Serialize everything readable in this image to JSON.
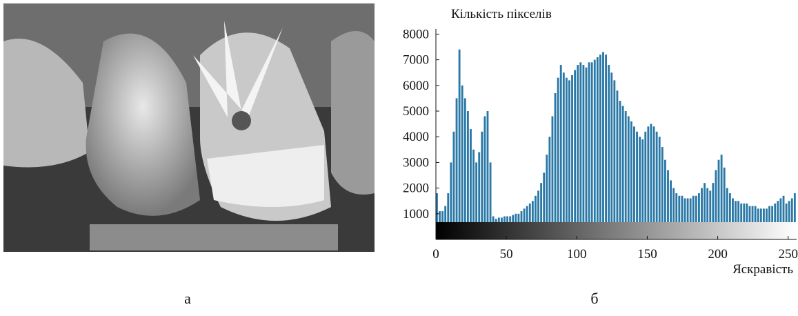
{
  "chart_data": {
    "type": "histogram",
    "ylabel": "Кількість пікселів",
    "xlabel": "Яскравість",
    "color": "#2a78a6",
    "bins": [
      0,
      2,
      4,
      6,
      8,
      10,
      12,
      14,
      16,
      18,
      20,
      22,
      24,
      26,
      28,
      30,
      32,
      34,
      36,
      38,
      40,
      42,
      44,
      46,
      48,
      50,
      52,
      54,
      56,
      58,
      60,
      62,
      64,
      66,
      68,
      70,
      72,
      74,
      76,
      78,
      80,
      82,
      84,
      86,
      88,
      90,
      92,
      94,
      96,
      98,
      100,
      102,
      104,
      106,
      108,
      110,
      112,
      114,
      116,
      118,
      120,
      122,
      124,
      126,
      128,
      130,
      132,
      134,
      136,
      138,
      140,
      142,
      144,
      146,
      148,
      150,
      152,
      154,
      156,
      158,
      160,
      162,
      164,
      166,
      168,
      170,
      172,
      174,
      176,
      178,
      180,
      182,
      184,
      186,
      188,
      190,
      192,
      194,
      196,
      198,
      200,
      202,
      204,
      206,
      208,
      210,
      212,
      214,
      216,
      218,
      220,
      222,
      224,
      226,
      228,
      230,
      232,
      234,
      236,
      238,
      240,
      242,
      244,
      246,
      248,
      250,
      252,
      254,
      256
    ],
    "values": [
      1800,
      1100,
      1100,
      1300,
      1800,
      3000,
      4200,
      5500,
      7400,
      6000,
      5500,
      5000,
      4300,
      3500,
      3000,
      3400,
      4200,
      4800,
      5000,
      3000,
      900,
      800,
      850,
      850,
      900,
      900,
      900,
      950,
      1000,
      1000,
      1100,
      1200,
      1300,
      1400,
      1500,
      1700,
      1900,
      2200,
      2600,
      3300,
      4000,
      4800,
      5700,
      6300,
      6800,
      6500,
      6300,
      6200,
      6400,
      6600,
      6800,
      6900,
      6800,
      6700,
      6900,
      6900,
      7000,
      7100,
      7200,
      7300,
      7200,
      6800,
      6500,
      6200,
      5800,
      5400,
      5200,
      5000,
      4800,
      4600,
      4400,
      4200,
      4000,
      3900,
      4200,
      4400,
      4500,
      4400,
      4200,
      4000,
      3600,
      3100,
      2700,
      2300,
      2000,
      1800,
      1700,
      1700,
      1600,
      1600,
      1600,
      1700,
      1700,
      1800,
      2000,
      2200,
      2000,
      1900,
      2200,
      2700,
      3100,
      3300,
      2800,
      2000,
      1800,
      1600,
      1500,
      1500,
      1400,
      1400,
      1400,
      1300,
      1300,
      1300,
      1200,
      1200,
      1200,
      1200,
      1300,
      1300,
      1400,
      1500,
      1600,
      1700,
      1400,
      1500,
      1600,
      1800
    ],
    "xlim": [
      0,
      256
    ],
    "xticks": [
      0,
      50,
      100,
      150,
      200,
      250
    ],
    "ylim": [
      0,
      8200
    ],
    "yticks": [
      1000,
      2000,
      3000,
      4000,
      5000,
      6000,
      7000,
      8000
    ]
  },
  "figure": {
    "labels": [
      "а",
      "б"
    ]
  }
}
